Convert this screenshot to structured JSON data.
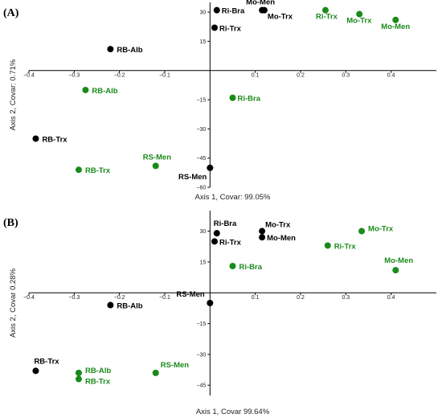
{
  "colors": {
    "black_group": "#000000",
    "green_group": "#1a8a1a"
  },
  "chart_data": [
    {
      "type": "scatter",
      "panel_label": "(A)",
      "xlabel": "Axis 1, Covar: 99.05%",
      "ylabel": "Axis 2, Covar: 0.71%",
      "xlim": [
        -0.4,
        0.5
      ],
      "ylim": [
        -60,
        35
      ],
      "xticks": [
        -0.4,
        -0.3,
        -0.2,
        -0.1,
        0.1,
        0.2,
        0.3,
        0.4
      ],
      "xtick_labels": [
        "−0.4",
        "−0.3",
        "−0.2",
        "−0.1",
        "0.1",
        "0.2",
        "0.3",
        "0.4"
      ],
      "yticks": [
        30,
        15,
        -15,
        -30,
        -45,
        -60
      ],
      "ytick_labels": [
        "30",
        "15",
        "−15",
        "−30",
        "−45",
        "−60"
      ],
      "series": [
        {
          "color": "#000000",
          "points": [
            {
              "label": "RB-Alb",
              "x": -0.22,
              "y": 11
            },
            {
              "label": "RB-Trx",
              "x": -0.385,
              "y": -35
            },
            {
              "label": "RS-Men",
              "x": 0.0,
              "y": -50
            },
            {
              "label": "Ri-Bra",
              "x": 0.015,
              "y": 31
            },
            {
              "label": "Ri-Trx",
              "x": 0.01,
              "y": 22
            },
            {
              "label": "Mo-Men",
              "x": 0.115,
              "y": 31
            },
            {
              "label": "Mo-Trx",
              "x": 0.12,
              "y": 31
            }
          ]
        },
        {
          "color": "#1a8a1a",
          "points": [
            {
              "label": "RB-Alb",
              "x": -0.275,
              "y": -10
            },
            {
              "label": "RB-Trx",
              "x": -0.29,
              "y": -51
            },
            {
              "label": "RS-Men",
              "x": -0.12,
              "y": -49
            },
            {
              "label": "Ri-Bra",
              "x": 0.05,
              "y": -14
            },
            {
              "label": "Ri-Trx",
              "x": 0.255,
              "y": 31
            },
            {
              "label": "Mo-Trx",
              "x": 0.33,
              "y": 29
            },
            {
              "label": "Mo-Men",
              "x": 0.41,
              "y": 26
            }
          ]
        }
      ]
    },
    {
      "type": "scatter",
      "panel_label": "(B)",
      "xlabel": "Axis 1, Covar 99.64%",
      "ylabel": "Axis 2, Covar 0.28%",
      "xlim": [
        -0.4,
        0.5
      ],
      "ylim": [
        -50,
        40
      ],
      "xticks": [
        -0.4,
        -0.3,
        -0.2,
        -0.1,
        0.1,
        0.2,
        0.3,
        0.4
      ],
      "xtick_labels": [
        "−0.4",
        "−0.3",
        "−0.2",
        "−0.1",
        "0.1",
        "0.2",
        "0.3",
        "0.4"
      ],
      "yticks": [
        30,
        15,
        -15,
        -30,
        -45
      ],
      "ytick_labels": [
        "30",
        "15",
        "−15",
        "−30",
        "−45"
      ],
      "series": [
        {
          "color": "#000000",
          "points": [
            {
              "label": "RB-Alb",
              "x": -0.22,
              "y": -6
            },
            {
              "label": "RB-Trx",
              "x": -0.385,
              "y": -38
            },
            {
              "label": "RS-Men",
              "x": 0.0,
              "y": -5
            },
            {
              "label": "Ri-Bra",
              "x": 0.015,
              "y": 29
            },
            {
              "label": "Ri-Trx",
              "x": 0.01,
              "y": 25
            },
            {
              "label": "Mo-Trx",
              "x": 0.115,
              "y": 30
            },
            {
              "label": "Mo-Men",
              "x": 0.115,
              "y": 27
            }
          ]
        },
        {
          "color": "#1a8a1a",
          "points": [
            {
              "label": "RB-Alb",
              "x": -0.29,
              "y": -39
            },
            {
              "label": "RB-Trx",
              "x": -0.29,
              "y": -42
            },
            {
              "label": "RS-Men",
              "x": -0.12,
              "y": -39
            },
            {
              "label": "Ri-Bra",
              "x": 0.05,
              "y": 13
            },
            {
              "label": "Ri-Trx",
              "x": 0.26,
              "y": 23
            },
            {
              "label": "Mo-Trx",
              "x": 0.335,
              "y": 30
            },
            {
              "label": "Mo-Men",
              "x": 0.41,
              "y": 11
            }
          ]
        }
      ]
    }
  ]
}
